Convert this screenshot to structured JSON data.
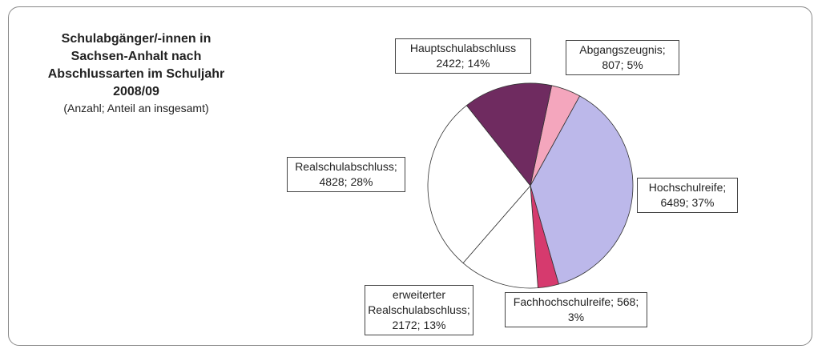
{
  "chart_data": {
    "type": "pie",
    "title": "Schulabgänger/-innen in Sachsen-Anhalt nach Abschlussarten im Schuljahr 2008/09",
    "subtitle": "(Anzahl; Anteil an insgesamt)",
    "categories": [
      "Abgangszeugnis;",
      "Hochschulreife;",
      "Fachhochschulreife;",
      "erweiterter Realschulabschluss;",
      "Realschulabschluss;",
      "Hauptschulabschluss"
    ],
    "values": [
      807,
      6489,
      568,
      2172,
      4828,
      2422
    ],
    "value_labels": [
      "807; 5%",
      "6489; 37%",
      "568; 3%",
      "2172; 13%",
      "4828; 28%",
      "2422; 14%"
    ],
    "colors": [
      "#f4a6bd",
      "#bcb8ea",
      "#d63a6e",
      "#ffffff",
      "#ffffff",
      "#6f2b60"
    ]
  }
}
